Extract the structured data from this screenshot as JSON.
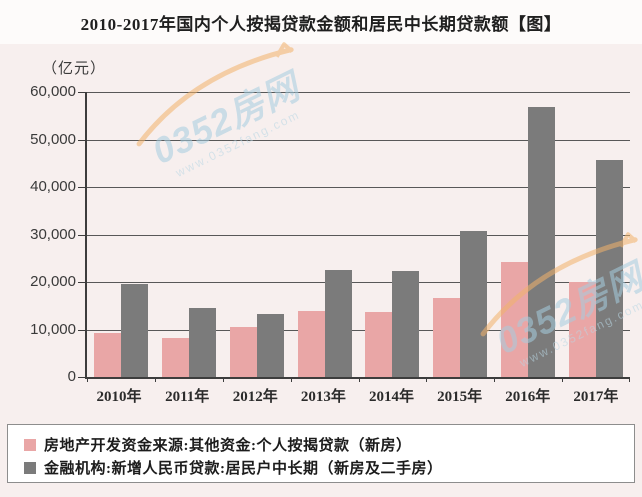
{
  "title": "2010-2017年国内个人按揭贷款金额和居民中长期贷款额【图】",
  "watermark": {
    "text": "0352房网",
    "url": "www.0352fang.com"
  },
  "chart_data": {
    "type": "bar",
    "title": "2010-2017年国内个人按揭贷款金额和居民中长期贷款额",
    "unit_label": "（亿元）",
    "xlabel": "",
    "ylabel": "亿元",
    "categories": [
      "2010年",
      "2011年",
      "2012年",
      "2013年",
      "2014年",
      "2015年",
      "2016年",
      "2017年"
    ],
    "series": [
      {
        "key": "mortgage-new-homes",
        "name": "房地产开发资金来源:其他资金:个人按揭贷款（新房）",
        "color": "#E9A6A6",
        "values": [
          9200,
          8200,
          10500,
          14000,
          13700,
          16700,
          24300,
          19900
        ]
      },
      {
        "key": "household-mid-long-term-loans",
        "name": "金融机构:新增人民币贷款:居民户中长期（新房及二手房）",
        "color": "#7B7B7B",
        "values": [
          19500,
          14500,
          13300,
          22500,
          22300,
          30800,
          56800,
          45600
        ]
      }
    ],
    "ylim": [
      0,
      60000
    ],
    "ytick_step": 10000,
    "ytick_labels": [
      "0",
      "10,000",
      "20,000",
      "30,000",
      "40,000",
      "50,000",
      "60,000"
    ],
    "grid": true,
    "legend_position": "bottom"
  }
}
